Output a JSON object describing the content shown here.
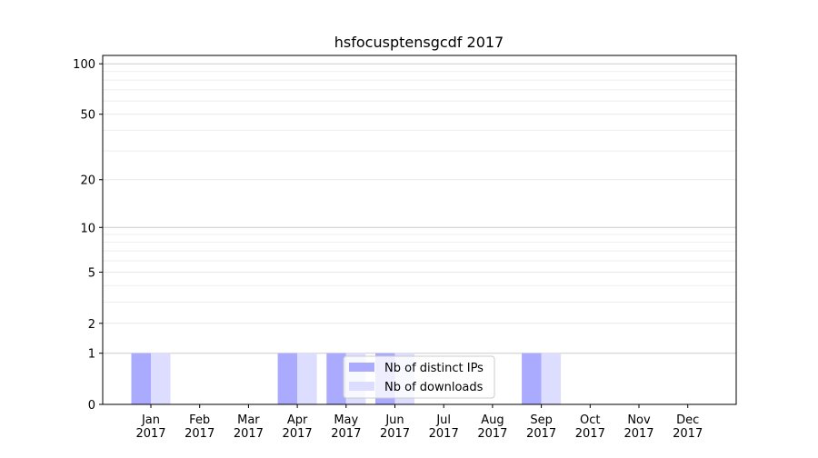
{
  "chart_data": {
    "type": "bar",
    "title": "hsfocusptensgcdf 2017",
    "xlabel": "",
    "ylabel": "",
    "yscale": "symlog",
    "ylim": [
      0,
      112
    ],
    "yticks": [
      0,
      1,
      2,
      5,
      10,
      20,
      50,
      100
    ],
    "grid": true,
    "legend": "lower-center",
    "categories": [
      "Jan\n2017",
      "Feb\n2017",
      "Mar\n2017",
      "Apr\n2017",
      "May\n2017",
      "Jun\n2017",
      "Jul\n2017",
      "Aug\n2017",
      "Sep\n2017",
      "Oct\n2017",
      "Nov\n2017",
      "Dec\n2017"
    ],
    "series": [
      {
        "name": "Nb of distinct IPs",
        "color": "#aaaaff",
        "values": [
          1,
          0,
          0,
          1,
          1,
          1,
          0,
          0,
          1,
          0,
          0,
          0
        ]
      },
      {
        "name": "Nb of downloads",
        "color": "#ddddff",
        "values": [
          1,
          0,
          0,
          1,
          1,
          1,
          0,
          0,
          1,
          0,
          0,
          0
        ]
      }
    ]
  }
}
